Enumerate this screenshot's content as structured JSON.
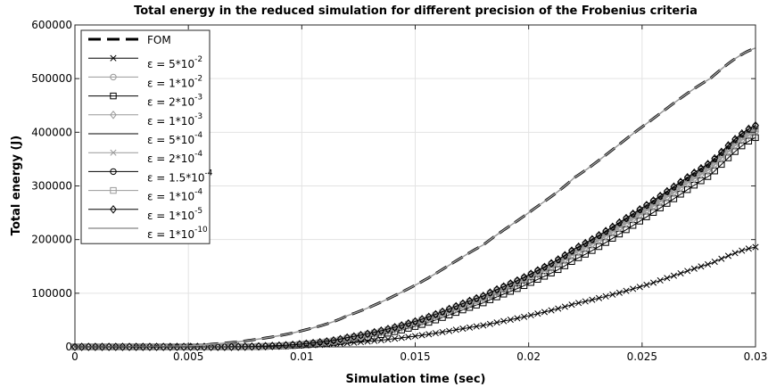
{
  "chart_data": {
    "type": "line",
    "title": "Total energy in the reduced simulation for different precision of the Frobenius criteria",
    "xlabel": "Simulation time (sec)",
    "ylabel": "Total energy (J)",
    "xlim": [
      0,
      0.03
    ],
    "ylim": [
      0,
      600000
    ],
    "xticks": [
      0,
      0.005,
      0.01,
      0.015,
      0.02,
      0.025,
      0.03
    ],
    "xtick_labels": [
      "0",
      "0.005",
      "0.01",
      "0.015",
      "0.02",
      "0.025",
      "0.03"
    ],
    "yticks": [
      0,
      100000,
      200000,
      300000,
      400000,
      500000,
      600000
    ],
    "ytick_labels": [
      "0",
      "100000",
      "200000",
      "300000",
      "400000",
      "500000",
      "600000"
    ],
    "grid": true,
    "legend_position": "top-left",
    "x": [
      0,
      0.003,
      0.005,
      0.006,
      0.008,
      0.01,
      0.012,
      0.015,
      0.018,
      0.02,
      0.022,
      0.025,
      0.028,
      0.03
    ],
    "series": [
      {
        "name": "FOM",
        "legend_base": "FOM",
        "legend_exp": "",
        "color": "#000000",
        "dash": "14,7",
        "width": 3,
        "marker": "none",
        "values": [
          0,
          500,
          2000,
          5000,
          14000,
          30000,
          58000,
          115000,
          190000,
          250000,
          315000,
          410000,
          500000,
          557000
        ]
      },
      {
        "name": "ε = 5*10^-2",
        "legend_base": "ε = 5*10",
        "legend_exp": "-2",
        "color": "#000000",
        "dash": "",
        "width": 1,
        "marker": "x",
        "values": [
          0,
          0,
          0,
          0,
          400,
          2500,
          7000,
          20000,
          40000,
          58000,
          80000,
          113000,
          155000,
          186000
        ]
      },
      {
        "name": "ε = 1*10^-2",
        "legend_base": "ε = 1*10",
        "legend_exp": "-2",
        "color": "#999999",
        "dash": "",
        "width": 1,
        "marker": "o",
        "values": [
          0,
          0,
          0,
          0,
          700,
          4500,
          15000,
          44000,
          90000,
          128000,
          175000,
          250000,
          333000,
          402000
        ]
      },
      {
        "name": "ε = 2*10^-3",
        "legend_base": "ε = 2*10",
        "legend_exp": "-3",
        "color": "#000000",
        "dash": "",
        "width": 1,
        "marker": "s",
        "values": [
          0,
          0,
          0,
          0,
          500,
          3500,
          12000,
          38000,
          82000,
          118000,
          162000,
          237000,
          320000,
          390000
        ]
      },
      {
        "name": "ε = 1*10^-3",
        "legend_base": "ε = 1*10",
        "legend_exp": "-3",
        "color": "#999999",
        "dash": "",
        "width": 1,
        "marker": "d",
        "values": [
          0,
          0,
          0,
          0,
          650,
          4300,
          14500,
          43000,
          89000,
          127000,
          173000,
          248000,
          331000,
          400000
        ]
      },
      {
        "name": "ε = 5*10^-4",
        "legend_base": "ε = 5*10",
        "legend_exp": "-4",
        "color": "#000000",
        "dash": "",
        "width": 1,
        "marker": "none",
        "values": [
          0,
          0,
          0,
          0,
          800,
          5000,
          16500,
          46500,
          93500,
          132000,
          180000,
          256000,
          340000,
          408000
        ]
      },
      {
        "name": "ε = 2*10^-4",
        "legend_base": "ε = 2*10",
        "legend_exp": "-4",
        "color": "#999999",
        "dash": "",
        "width": 1,
        "marker": "x",
        "values": [
          0,
          0,
          0,
          0,
          750,
          4800,
          16000,
          45500,
          92000,
          130000,
          178000,
          253000,
          337000,
          405000
        ]
      },
      {
        "name": "ε = 1.5*10^-4",
        "legend_base": "ε = 1.5*10",
        "legend_exp": "-4",
        "color": "#000000",
        "dash": "",
        "width": 1,
        "marker": "o",
        "values": [
          0,
          0,
          0,
          0,
          820,
          5100,
          17000,
          47000,
          94500,
          133500,
          181500,
          258000,
          342000,
          411000
        ]
      },
      {
        "name": "ε = 1*10^-4",
        "legend_base": "ε = 1*10",
        "legend_exp": "-4",
        "color": "#999999",
        "dash": "",
        "width": 1,
        "marker": "s",
        "values": [
          0,
          0,
          0,
          0,
          780,
          4900,
          16200,
          46000,
          92800,
          131000,
          179000,
          254500,
          338500,
          406500
        ]
      },
      {
        "name": "ε = 1*10^-5",
        "legend_base": "ε = 1*10",
        "legend_exp": "-5",
        "color": "#000000",
        "dash": "",
        "width": 1,
        "marker": "d",
        "values": [
          0,
          0,
          0,
          0,
          850,
          5200,
          17300,
          47500,
          95000,
          134000,
          182500,
          259000,
          343500,
          413000
        ]
      },
      {
        "name": "ε = 1*10^-10",
        "legend_base": "ε = 1*10",
        "legend_exp": "-10",
        "color": "#999999",
        "dash": "",
        "width": 1.5,
        "marker": "none",
        "values": [
          0,
          500,
          2000,
          5000,
          14000,
          30000,
          58000,
          115000,
          190000,
          250000,
          315000,
          410000,
          500000,
          557000
        ]
      }
    ]
  }
}
